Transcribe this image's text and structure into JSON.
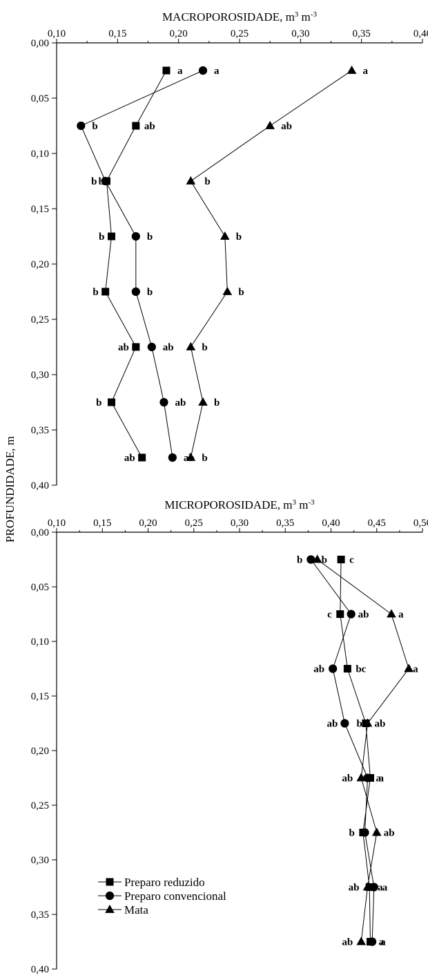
{
  "y_axis_title": "PROFUNDIDADE, m",
  "chart_data": [
    {
      "type": "line",
      "title": "MACROPOROSIDADE, m³ m⁻³",
      "title_base": "MACROPOROSIDADE, m",
      "title_unit_mid": " m",
      "xlabel": "",
      "ylabel": "PROFUNDIDADE, m",
      "xlim": [
        0.1,
        0.4
      ],
      "ylim": [
        0.0,
        0.4
      ],
      "y_inverted": true,
      "x_axis_position": "top",
      "x_ticks": [
        "0,10",
        "0,15",
        "0,20",
        "0,25",
        "0,30",
        "0,35",
        "0,40"
      ],
      "y_ticks": [
        "0,00",
        "0,05",
        "0,10",
        "0,15",
        "0,20",
        "0,25",
        "0,30",
        "0,35",
        "0,40"
      ],
      "y": [
        0.025,
        0.075,
        0.125,
        0.175,
        0.225,
        0.275,
        0.325,
        0.375
      ],
      "series": [
        {
          "name": "Preparo reduzido",
          "marker": "square",
          "x": [
            0.19,
            0.165,
            0.141,
            0.145,
            0.14,
            0.165,
            0.145,
            0.17
          ],
          "labels": [
            "a",
            "ab",
            "b",
            "b",
            "b",
            "ab",
            "b",
            "ab"
          ]
        },
        {
          "name": "Preparo convencional",
          "marker": "circle",
          "x": [
            0.22,
            0.12,
            0.14,
            0.165,
            0.165,
            0.178,
            0.188,
            0.195
          ],
          "labels": [
            "a",
            "b",
            "b",
            "b",
            "b",
            "ab",
            "ab",
            "ab"
          ]
        },
        {
          "name": "Mata",
          "marker": "triangle",
          "x": [
            0.342,
            0.275,
            0.21,
            0.238,
            0.24,
            0.21,
            0.22,
            0.21
          ],
          "labels": [
            "a",
            "ab",
            "b",
            "b",
            "b",
            "b",
            "b",
            "b"
          ]
        }
      ],
      "grid": false
    },
    {
      "type": "line",
      "title": "MICROPOROSIDADE, m³ m⁻³",
      "title_base": "MICROPOROSIDADE, m",
      "title_unit_mid": " m",
      "xlabel": "",
      "ylabel": "PROFUNDIDADE, m",
      "xlim": [
        0.1,
        0.5
      ],
      "ylim": [
        0.0,
        0.4
      ],
      "y_inverted": true,
      "x_axis_position": "top",
      "x_ticks": [
        "0,10",
        "0,15",
        "0,20",
        "0,25",
        "0,30",
        "0,35",
        "0,40",
        "0,45",
        "0,50"
      ],
      "y_ticks": [
        "0,00",
        "0,05",
        "0,10",
        "0,15",
        "0,20",
        "0,25",
        "0,30",
        "0,35",
        "0,40"
      ],
      "y": [
        0.025,
        0.075,
        0.125,
        0.175,
        0.225,
        0.275,
        0.325,
        0.375
      ],
      "series": [
        {
          "name": "Preparo reduzido",
          "marker": "square",
          "x": [
            0.411,
            0.41,
            0.418,
            0.438,
            0.443,
            0.435,
            0.442,
            0.443
          ],
          "labels": [
            "c",
            "c",
            "bc",
            "b",
            "a",
            "b",
            "a",
            "a"
          ]
        },
        {
          "name": "Preparo convencional",
          "marker": "circle",
          "x": [
            0.378,
            0.422,
            0.402,
            0.415,
            0.44,
            0.437,
            0.447,
            0.445
          ],
          "labels": [
            "b",
            "ab",
            "ab",
            "ab",
            "a",
            "a",
            "a",
            "a"
          ]
        },
        {
          "name": "Mata",
          "marker": "triangle",
          "x": [
            0.385,
            0.466,
            0.485,
            0.44,
            0.433,
            0.45,
            0.44,
            0.433
          ],
          "labels": [
            "b",
            "a",
            "a",
            "ab",
            "ab",
            "ab",
            "ab",
            "ab"
          ]
        }
      ],
      "grid": false
    }
  ],
  "legend": {
    "placement": "bottom-left",
    "items": [
      {
        "name": "Preparo reduzido",
        "marker": "square"
      },
      {
        "name": "Preparo convencional",
        "marker": "circle"
      },
      {
        "name": "Mata",
        "marker": "triangle"
      }
    ]
  }
}
